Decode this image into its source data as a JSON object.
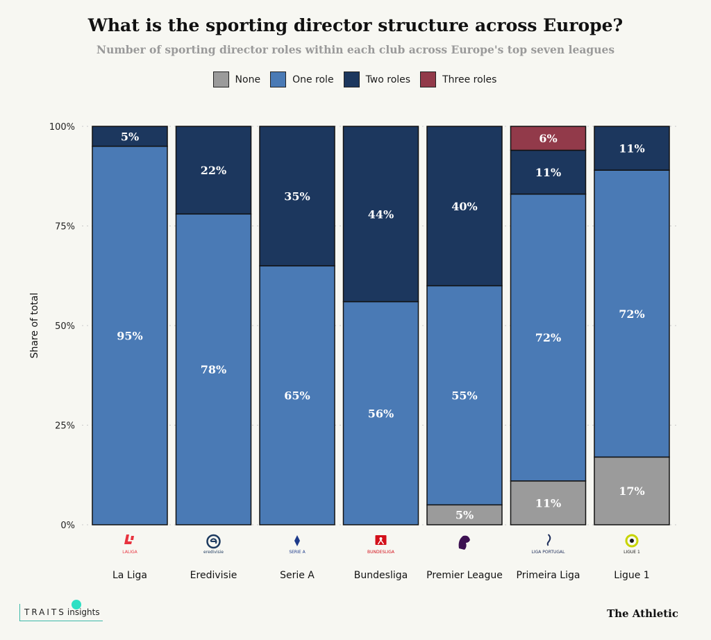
{
  "title": "What is the sporting director structure across Europe?",
  "subtitle": "Number of sporting director roles within each club across Europe's top seven leagues",
  "legend": [
    {
      "label": "None",
      "color": "#9b9b9b"
    },
    {
      "label": "One role",
      "color": "#4a7ab5"
    },
    {
      "label": "Two roles",
      "color": "#1c375e"
    },
    {
      "label": "Three roles",
      "color": "#923a4a"
    }
  ],
  "chart_data": {
    "type": "bar",
    "stacked": true,
    "title": "What is the sporting director structure across Europe?",
    "subtitle": "Number of sporting director roles within each club across Europe's top seven leagues",
    "xlabel": "",
    "ylabel": "Share of total",
    "ylim": [
      0,
      100
    ],
    "yticks": [
      "0%",
      "25%",
      "50%",
      "75%",
      "100%"
    ],
    "grid": true,
    "legend_position": "top",
    "categories": [
      "La Liga",
      "Eredivisie",
      "Serie A",
      "Bundesliga",
      "Premier League",
      "Primeira Liga",
      "Ligue 1"
    ],
    "series": [
      {
        "name": "None",
        "color": "#9b9b9b",
        "values": [
          0,
          0,
          0,
          0,
          5,
          11,
          17
        ],
        "labels": [
          "",
          "",
          "",
          "",
          "5%",
          "11%",
          "17%"
        ]
      },
      {
        "name": "One role",
        "color": "#4a7ab5",
        "values": [
          95,
          78,
          65,
          56,
          55,
          72,
          72
        ],
        "labels": [
          "95%",
          "78%",
          "65%",
          "56%",
          "55%",
          "72%",
          "72%"
        ]
      },
      {
        "name": "Two roles",
        "color": "#1c375e",
        "values": [
          5,
          22,
          35,
          44,
          40,
          11,
          11
        ],
        "labels": [
          "5%",
          "22%",
          "35%",
          "44%",
          "40%",
          "11%",
          "11%"
        ]
      },
      {
        "name": "Three roles",
        "color": "#923a4a",
        "values": [
          0,
          0,
          0,
          0,
          0,
          6,
          0
        ],
        "labels": [
          "",
          "",
          "",
          "",
          "",
          "6%",
          ""
        ]
      }
    ]
  },
  "logos": [
    {
      "icon": "laliga-logo",
      "text": "LALIGA",
      "color": "#e8333f"
    },
    {
      "icon": "eredivisie-logo",
      "text": "eredivisie",
      "color": "#1d3a5f"
    },
    {
      "icon": "serie-a-logo",
      "text": "SERIE A",
      "color": "#1d3a8a"
    },
    {
      "icon": "bundesliga-logo",
      "text": "BUNDESLIGA",
      "color": "#d3101a"
    },
    {
      "icon": "premier-league-logo",
      "text": "",
      "color": "#3d1152"
    },
    {
      "icon": "liga-portugal-logo",
      "text": "LIGA PORTUGAL",
      "color": "#1d2d5a"
    },
    {
      "icon": "ligue-1-logo",
      "text": "LIGUE 1",
      "color": "#c7d400"
    }
  ],
  "footer": {
    "traits_main": "TRAITS",
    "traits_sub": "insights",
    "athletic": "The Athletic"
  }
}
